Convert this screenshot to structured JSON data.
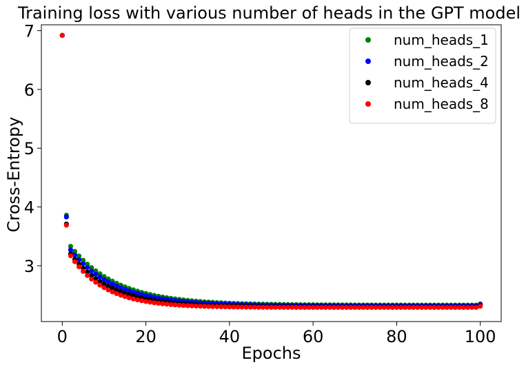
{
  "chart_data": {
    "type": "scatter",
    "title": "Training loss with various number of heads in the GPT model",
    "xlabel": "Epochs",
    "ylabel": "Cross-Entropy",
    "xlim": [
      -5,
      105
    ],
    "ylim": [
      2.05,
      7.1
    ],
    "xticks": [
      0,
      20,
      40,
      60,
      80,
      100
    ],
    "yticks": [
      3,
      4,
      5,
      6,
      7
    ],
    "grid": false,
    "legend_position": "top-right",
    "series": [
      {
        "name": "num_heads_1",
        "color": "#008000",
        "start": 6.92,
        "second": 3.86,
        "floor": 2.33,
        "amplitude": 1.0,
        "decay": 0.09,
        "final": 2.35
      },
      {
        "name": "num_heads_2",
        "color": "#0000ff",
        "start": 6.92,
        "second": 3.83,
        "floor": 2.32,
        "amplitude": 0.95,
        "decay": 0.095,
        "final": 2.34
      },
      {
        "name": "num_heads_4",
        "color": "#000000",
        "start": 6.92,
        "second": 3.71,
        "floor": 2.3,
        "amplitude": 0.9,
        "decay": 0.105,
        "final": 2.32
      },
      {
        "name": "num_heads_8",
        "color": "#ff0000",
        "start": 6.92,
        "second": 3.69,
        "floor": 2.29,
        "amplitude": 0.88,
        "decay": 0.12,
        "final": 2.31
      }
    ]
  }
}
